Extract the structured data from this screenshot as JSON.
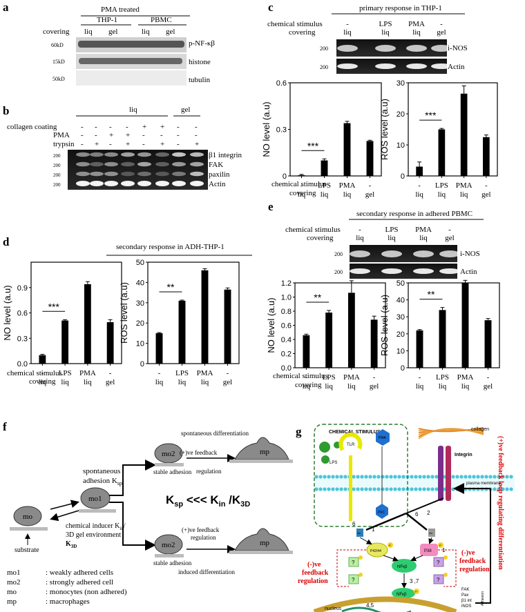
{
  "panel_a": {
    "letter": "a",
    "header": "PMA treated",
    "groups": [
      "THP-1",
      "PBMC"
    ],
    "covering_label": "covering",
    "lanes": [
      "liq",
      "gel",
      "liq",
      "gel"
    ],
    "markers": [
      "60kD",
      "15kD",
      "50kD"
    ],
    "bands": [
      "p-NF-κβ",
      "histone",
      "tubulin"
    ]
  },
  "panel_b": {
    "letter": "b",
    "groups": [
      "liq",
      "gel"
    ],
    "rows": [
      {
        "label": "collagen coating",
        "values": [
          "-",
          "-",
          "-",
          "-",
          "+",
          "+",
          "-",
          "-"
        ]
      },
      {
        "label": "PMA",
        "values": [
          "-",
          "-",
          "+",
          "+",
          "-",
          "-",
          "-",
          "-"
        ]
      },
      {
        "label": "trypsin",
        "values": [
          "-",
          "+",
          "-",
          "+",
          "-",
          "+",
          "-",
          "+"
        ]
      }
    ],
    "marker": "200",
    "bands": [
      "β1 integrin",
      "FAK",
      "paxilin",
      "Actin"
    ]
  },
  "panel_c": {
    "letter": "c",
    "header": "primary response in THP-1",
    "stim_label": "chemical stimulus",
    "cover_label": "covering",
    "stims": [
      "-",
      "LPS",
      "PMA",
      "-"
    ],
    "covers": [
      "liq",
      "liq",
      "liq",
      "gel"
    ],
    "marker": "200",
    "bands": [
      "i-NOS",
      "Actin"
    ]
  },
  "panel_d": {
    "letter": "d",
    "header": "secondary response in  ADH-THP-1"
  },
  "panel_e": {
    "letter": "e",
    "header": "secondary response in adhered PBMC",
    "stim_label": "chemical stimulus",
    "cover_label": "covering",
    "stims": [
      "-",
      "LPS",
      "PMA",
      "-"
    ],
    "covers": [
      "liq",
      "liq",
      "liq",
      "gel"
    ],
    "marker": "200",
    "bands": [
      "i-NOS",
      "Actin"
    ]
  },
  "chart_labels": {
    "stim_label": "chemical stimulus",
    "cover_label": "covering",
    "stims": [
      "-",
      "LPS",
      "PMA",
      "-"
    ],
    "covers": [
      "liq",
      "liq",
      "liq",
      "gel"
    ]
  },
  "chart_data": [
    {
      "id": "c-no",
      "type": "bar",
      "categories": [
        "- liq",
        "LPS liq",
        "PMA liq",
        "- gel"
      ],
      "values": [
        0.005,
        0.1,
        0.34,
        0.225
      ],
      "errors": [
        0.005,
        0.01,
        0.012,
        0.005
      ],
      "ylabel": "NO level (a.u)",
      "ylim": [
        0,
        0.6
      ],
      "ticks": [
        "0",
        "0.3",
        "0.6"
      ],
      "sig": "***"
    },
    {
      "id": "c-ros",
      "type": "bar",
      "categories": [
        "- liq",
        "LPS liq",
        "PMA liq",
        "- gel"
      ],
      "values": [
        3,
        15,
        26.5,
        12.5
      ],
      "errors": [
        1.5,
        0.3,
        2.5,
        0.7
      ],
      "ylabel": "ROS level (a.u)",
      "ylim": [
        0,
        30
      ],
      "ticks": [
        "0",
        "10",
        "20",
        "30"
      ],
      "sig": "***"
    },
    {
      "id": "d-no",
      "type": "bar",
      "categories": [
        "- liq",
        "LPS liq",
        "PMA liq",
        "- gel"
      ],
      "values": [
        0.1,
        0.51,
        0.94,
        0.49
      ],
      "errors": [
        0.01,
        0.01,
        0.03,
        0.03
      ],
      "ylabel": "NO level (a.u)",
      "ylim": [
        0,
        1.2
      ],
      "ticks": [
        "0.0",
        "0.3",
        "0.6",
        "0.9"
      ],
      "sig": "***"
    },
    {
      "id": "d-ros",
      "type": "bar",
      "categories": [
        "- liq",
        "LPS liq",
        "PMA liq",
        "- gel"
      ],
      "values": [
        15,
        31,
        46,
        36.5
      ],
      "errors": [
        0.3,
        0.3,
        0.8,
        0.8
      ],
      "ylabel": "ROS level (a.u)",
      "ylim": [
        0,
        50
      ],
      "ticks": [
        "0",
        "10",
        "20",
        "30",
        "40",
        "50"
      ],
      "sig": "**"
    },
    {
      "id": "e-no",
      "type": "bar",
      "categories": [
        "- liq",
        "LPS liq",
        "PMA liq",
        "- gel"
      ],
      "values": [
        0.46,
        0.78,
        1.06,
        0.68
      ],
      "errors": [
        0.015,
        0.03,
        0.17,
        0.05
      ],
      "ylabel": "NO level (a.u)",
      "ylim": [
        0,
        1.2
      ],
      "ticks": [
        "0.0",
        "0.2",
        "0.4",
        "0.6",
        "0.8",
        "1.0",
        "1.2"
      ],
      "sig": "**"
    },
    {
      "id": "e-ros",
      "type": "bar",
      "categories": [
        "- liq",
        "LPS liq",
        "PMA liq",
        "- gel"
      ],
      "values": [
        22,
        34,
        50,
        28
      ],
      "errors": [
        0.5,
        1.5,
        1.5,
        1
      ],
      "ylabel": "ROS level (a.u)",
      "ylim": [
        0,
        50
      ],
      "ticks": [
        "0",
        "10",
        "20",
        "30",
        "40",
        "50"
      ],
      "sig": "**"
    }
  ],
  "panel_f": {
    "letter": "f",
    "mo": "mo",
    "mo1": "mo1",
    "mo2": "mo2",
    "mp": "mp",
    "substrate": "substrate",
    "spontaneous_adhesion": "spontaneous",
    "adhesion_ksp": "adhesion K",
    "ksp_sub": "sp",
    "chemical_inducer": "chemical inducer K",
    "kin_sub": "in",
    "gel_env": "3D gel environment",
    "k3d": "K",
    "k3d_sub": "3D",
    "stable_adhesion": "stable  adhesion",
    "feedback": "(+)ve feedback",
    "regulation": "regulation",
    "spont_diff": "spontaneous differentiation",
    "induced_diff": "induced differentiation",
    "equation": "K",
    "eq_sp": "sp",
    "eq_mid": " <<<   K",
    "eq_in": "in",
    "eq_slash": " /K",
    "eq_3d": "3D",
    "legend": [
      {
        "key": "mo1",
        "desc": ": weakly adhered cells"
      },
      {
        "key": "mo2",
        "desc": ": strongly adhered cell"
      },
      {
        "key": "mo",
        "desc": ": monocytes (non adhered)"
      },
      {
        "key": "mp",
        "desc": ": macrophages"
      }
    ]
  },
  "panel_g": {
    "letter": "g",
    "chemical_stimulus": "CHEMICAL STIMULUS",
    "lps": "LPS",
    "tlr": "TLR",
    "pma": "PMA",
    "pkc": "PKC",
    "collagen": "collagen",
    "integrin": "Integrin",
    "plasma_membrane": "plasma membrane",
    "ilm": "ilm",
    "p4244": "P42/44",
    "p38": "P38",
    "p": "P",
    "nfkb": "NFκβ",
    "q": "?",
    "neg_feedback_left": [
      "(-)ve",
      "feedback",
      "regulation"
    ],
    "neg_feedback_right": [
      "(-)ve",
      "feedback",
      "regulation"
    ],
    "pos_loop": "(+)ve feedback loop regulating differentiation",
    "num6a": "6",
    "num1": "1",
    "num6b": "6",
    "num2": "2",
    "num1b": "1",
    "num37": "3 ,7",
    "num45": "4,5",
    "nucleus": "nucleus",
    "genes": [
      "FAK",
      "Pax",
      "β1 int",
      "iNOS"
    ],
    "adhesion": "Adhesion"
  }
}
